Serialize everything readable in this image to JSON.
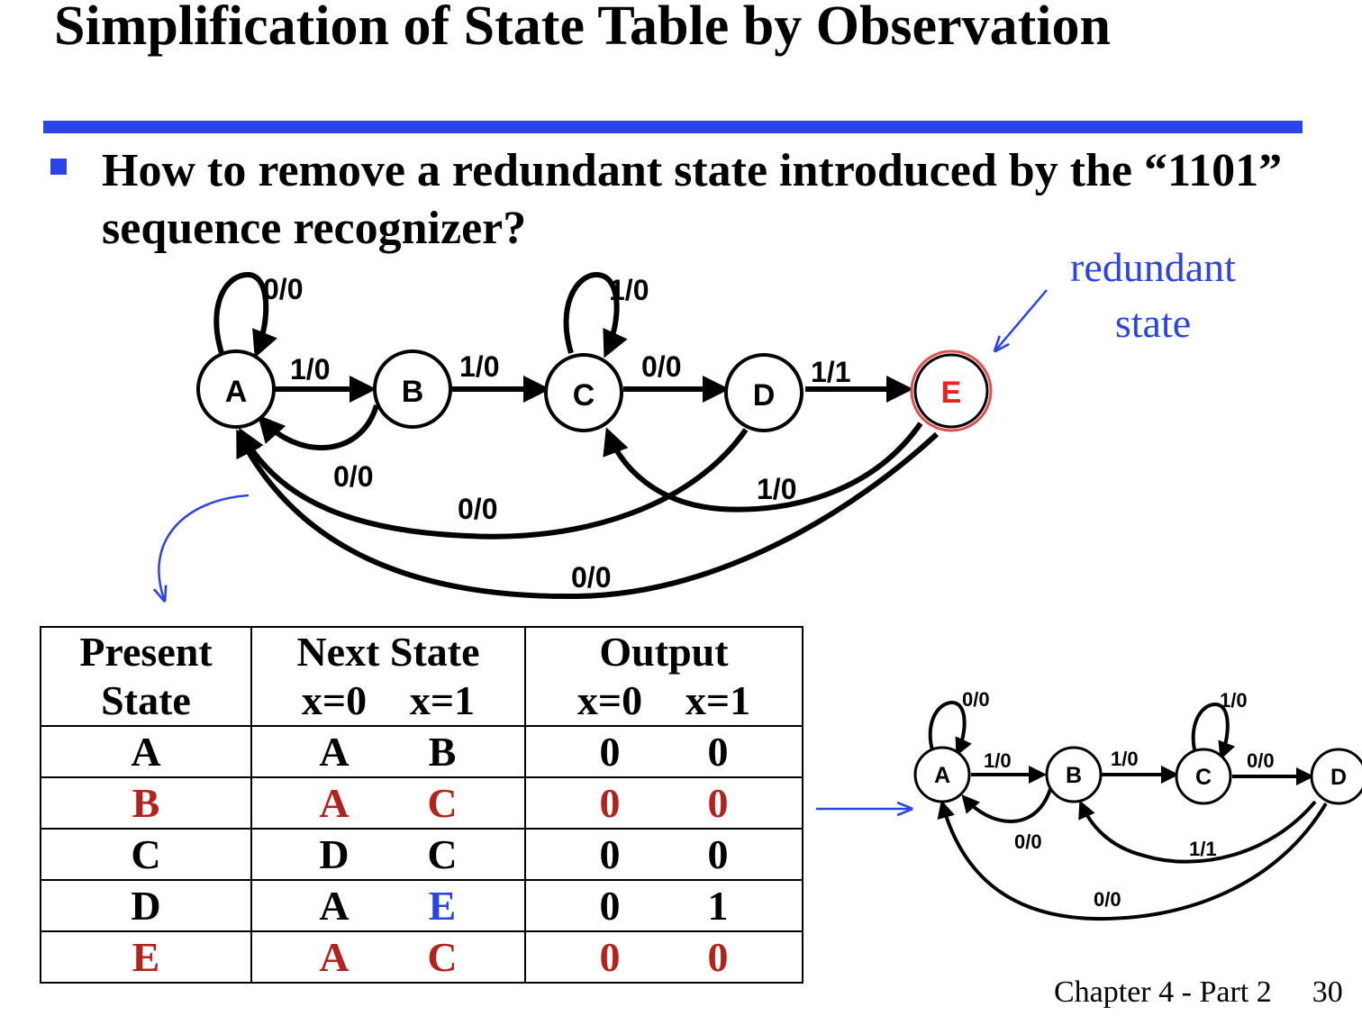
{
  "title": "Simplification of State Table by Observation",
  "bullet": "How to remove a redundant state introduced by the “1101” sequence recognizer?",
  "annotation": {
    "line1": "redundant",
    "line2": "state"
  },
  "footer": {
    "chapter": "Chapter 4 - Part 2",
    "page": "30"
  },
  "colors": {
    "accent": "#2b44e8",
    "redundant": "#b3221c",
    "highlight_blue": "#2b44e8",
    "state_e_ring": "#e05050"
  },
  "diagram_main": {
    "states": [
      "A",
      "B",
      "C",
      "D",
      "E"
    ],
    "transitions": [
      {
        "from": "A",
        "to": "A",
        "label": "0/0"
      },
      {
        "from": "A",
        "to": "B",
        "label": "1/0"
      },
      {
        "from": "B",
        "to": "C",
        "label": "1/0"
      },
      {
        "from": "C",
        "to": "C",
        "label": "1/0"
      },
      {
        "from": "C",
        "to": "D",
        "label": "0/0"
      },
      {
        "from": "D",
        "to": "E",
        "label": "1/1"
      },
      {
        "from": "B",
        "to": "A",
        "label": "0/0"
      },
      {
        "from": "D",
        "to": "A",
        "label": "0/0"
      },
      {
        "from": "E",
        "to": "C",
        "label": "1/0"
      },
      {
        "from": "E",
        "to": "A",
        "label": "0/0"
      }
    ]
  },
  "diagram_reduced": {
    "states": [
      "A",
      "B",
      "C",
      "D"
    ],
    "transitions": [
      {
        "from": "A",
        "to": "A",
        "label": "0/0"
      },
      {
        "from": "A",
        "to": "B",
        "label": "1/0"
      },
      {
        "from": "B",
        "to": "C",
        "label": "1/0"
      },
      {
        "from": "C",
        "to": "C",
        "label": "1/0"
      },
      {
        "from": "C",
        "to": "D",
        "label": "0/0"
      },
      {
        "from": "B",
        "to": "A",
        "label": "0/0"
      },
      {
        "from": "D",
        "to": "B",
        "label": "1/1"
      },
      {
        "from": "D",
        "to": "A",
        "label": "0/0"
      }
    ]
  },
  "table": {
    "headers": {
      "present": [
        "Present",
        "State"
      ],
      "next": "Next State",
      "output": "Output",
      "x0": "x=0",
      "x1": "x=1"
    },
    "rows": [
      {
        "state": "A",
        "next0": "A",
        "next1": "B",
        "out0": "0",
        "out1": "0"
      },
      {
        "state": "B",
        "next0": "A",
        "next1": "C",
        "out0": "0",
        "out1": "0"
      },
      {
        "state": "C",
        "next0": "D",
        "next1": "C",
        "out0": "0",
        "out1": "0"
      },
      {
        "state": "D",
        "next0": "A",
        "next1": "E",
        "out0": "0",
        "out1": "1"
      },
      {
        "state": "E",
        "next0": "A",
        "next1": "C",
        "out0": "0",
        "out1": "0"
      }
    ]
  }
}
